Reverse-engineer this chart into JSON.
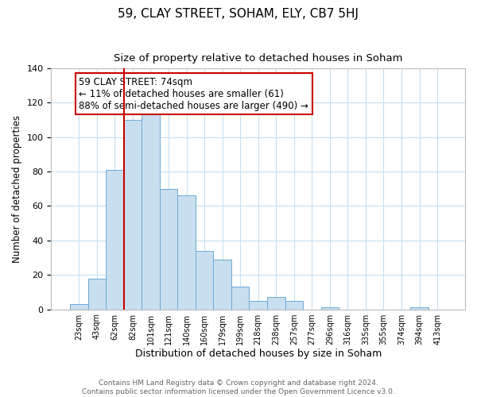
{
  "title": "59, CLAY STREET, SOHAM, ELY, CB7 5HJ",
  "subtitle": "Size of property relative to detached houses in Soham",
  "xlabel": "Distribution of detached houses by size in Soham",
  "ylabel": "Number of detached properties",
  "bar_labels": [
    "23sqm",
    "43sqm",
    "62sqm",
    "82sqm",
    "101sqm",
    "121sqm",
    "140sqm",
    "160sqm",
    "179sqm",
    "199sqm",
    "218sqm",
    "238sqm",
    "257sqm",
    "277sqm",
    "296sqm",
    "316sqm",
    "335sqm",
    "355sqm",
    "374sqm",
    "394sqm",
    "413sqm"
  ],
  "bar_values": [
    3,
    18,
    81,
    110,
    114,
    70,
    66,
    34,
    29,
    13,
    5,
    7,
    5,
    0,
    1,
    0,
    0,
    0,
    0,
    1,
    0
  ],
  "bar_color": "#c8dff0",
  "bar_edge_color": "#6aaad4",
  "vline_color": "#cc0000",
  "annotation_text": "59 CLAY STREET: 74sqm\n← 11% of detached houses are smaller (61)\n88% of semi-detached houses are larger (490) →",
  "annotation_box_color": "#ffffff",
  "annotation_box_edge_color": "#cc0000",
  "ylim": [
    0,
    140
  ],
  "yticks": [
    0,
    20,
    40,
    60,
    80,
    100,
    120,
    140
  ],
  "footer_text": "Contains HM Land Registry data © Crown copyright and database right 2024.\nContains public sector information licensed under the Open Government Licence v3.0.",
  "title_fontsize": 11,
  "subtitle_fontsize": 9.5,
  "xlabel_fontsize": 9,
  "ylabel_fontsize": 8.5,
  "footer_fontsize": 6.5,
  "annotation_fontsize": 8.5,
  "background_color": "#ffffff",
  "grid_color": "#c8dff0",
  "spine_color": "#bbbbbb"
}
